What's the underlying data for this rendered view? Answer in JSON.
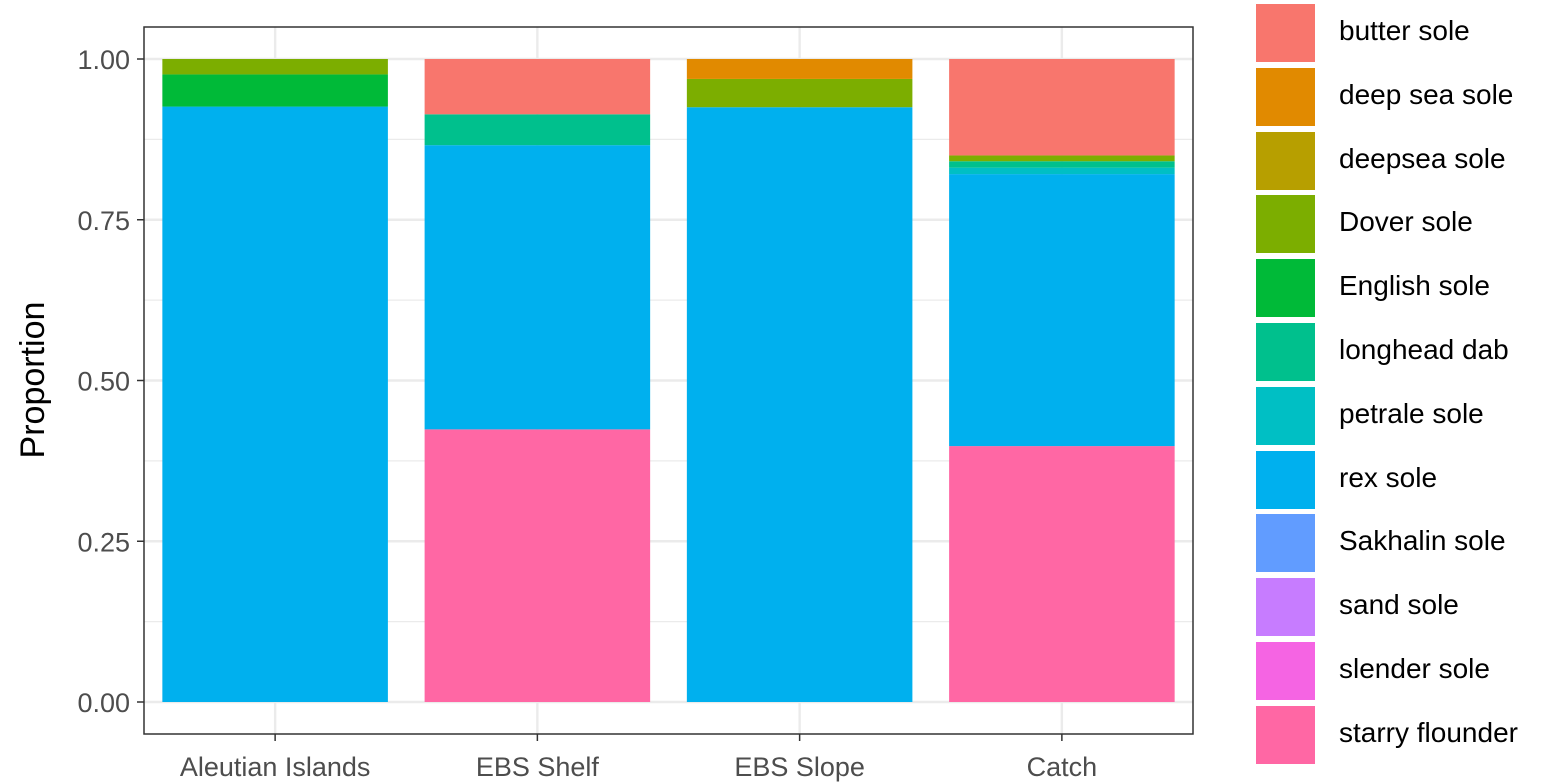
{
  "chart_data": {
    "type": "bar",
    "stacked": true,
    "categories": [
      "Aleutian Islands",
      "EBS Shelf",
      "EBS Slope",
      "Catch"
    ],
    "ylabel": "Proportion",
    "xlabel": "",
    "ylim": [
      0,
      1
    ],
    "yticks": [
      "0.00",
      "0.25",
      "0.50",
      "0.75",
      "1.00"
    ],
    "grid": true,
    "legend_position": "right",
    "series": [
      {
        "name": "starry flounder",
        "color": "#FF67A4",
        "values": [
          0,
          0.424,
          0,
          0.398
        ]
      },
      {
        "name": "slender sole",
        "color": "#F564E3",
        "values": [
          0,
          0,
          0,
          0
        ]
      },
      {
        "name": "sand sole",
        "color": "#C77CFF",
        "values": [
          0,
          0,
          0,
          0
        ]
      },
      {
        "name": "Sakhalin sole",
        "color": "#619CFF",
        "values": [
          0,
          0,
          0,
          0
        ]
      },
      {
        "name": "rex sole",
        "color": "#00B0EE",
        "values": [
          0.926,
          0.442,
          0.925,
          0.423
        ]
      },
      {
        "name": "petrale sole",
        "color": "#00BFC4",
        "values": [
          0,
          0,
          0,
          0.01
        ]
      },
      {
        "name": "longhead dab",
        "color": "#00C08D",
        "values": [
          0,
          0.048,
          0,
          0.01
        ]
      },
      {
        "name": "English sole",
        "color": "#00BA38",
        "values": [
          0.05,
          0,
          0,
          0
        ]
      },
      {
        "name": "Dover sole",
        "color": "#7CAE00",
        "values": [
          0.024,
          0,
          0.044,
          0.009
        ]
      },
      {
        "name": "deepsea sole",
        "color": "#B79F00",
        "values": [
          0,
          0,
          0,
          0
        ]
      },
      {
        "name": "deep sea sole",
        "color": "#E18A00",
        "values": [
          0,
          0,
          0.031,
          0
        ]
      },
      {
        "name": "butter sole",
        "color": "#F8766D",
        "values": [
          0,
          0.086,
          0,
          0.15
        ]
      }
    ]
  },
  "legend": {
    "items": [
      {
        "label": "butter sole",
        "color": "#F8766D"
      },
      {
        "label": "deep sea sole",
        "color": "#E18A00"
      },
      {
        "label": "deepsea sole",
        "color": "#B79F00"
      },
      {
        "label": "Dover sole",
        "color": "#7CAE00"
      },
      {
        "label": "English sole",
        "color": "#00BA38"
      },
      {
        "label": "longhead dab",
        "color": "#00C08D"
      },
      {
        "label": "petrale sole",
        "color": "#00BFC4"
      },
      {
        "label": "rex sole",
        "color": "#00B0EE"
      },
      {
        "label": "Sakhalin sole",
        "color": "#619CFF"
      },
      {
        "label": "sand sole",
        "color": "#C77CFF"
      },
      {
        "label": "slender sole",
        "color": "#F564E3"
      },
      {
        "label": "starry flounder",
        "color": "#FF67A4"
      }
    ]
  }
}
